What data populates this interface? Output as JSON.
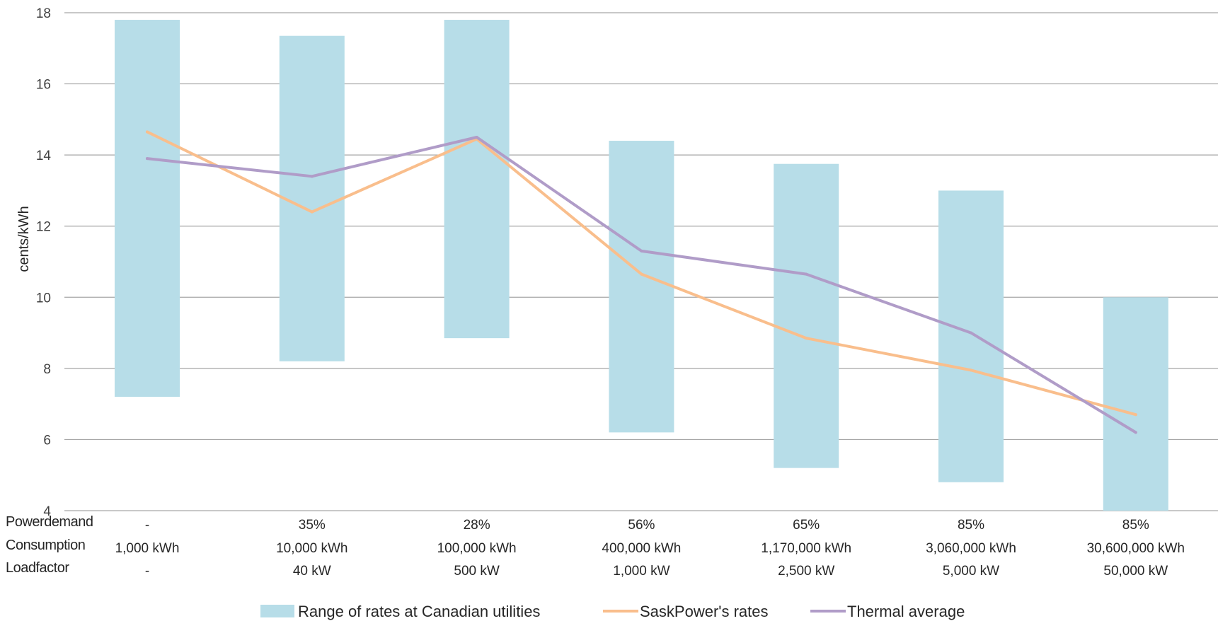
{
  "chart_data": {
    "type": "bar",
    "ylabel": "cents/kWh",
    "ylim": [
      4,
      18
    ],
    "yticks": [
      4,
      6,
      8,
      10,
      12,
      14,
      16,
      18
    ],
    "grid": true,
    "legend_position": "bottom",
    "categories": [
      {
        "power_demand": "-",
        "consumption": "1,000 kWh",
        "load_factor": "-"
      },
      {
        "power_demand": "35%",
        "consumption": "10,000 kWh",
        "load_factor": "40 kW"
      },
      {
        "power_demand": "28%",
        "consumption": "100,000 kWh",
        "load_factor": "500 kW"
      },
      {
        "power_demand": "56%",
        "consumption": "400,000 kWh",
        "load_factor": "1,000 kW"
      },
      {
        "power_demand": "65%",
        "consumption": "1,170,000 kWh",
        "load_factor": "2,500 kW"
      },
      {
        "power_demand": "85%",
        "consumption": "3,060,000 kWh",
        "load_factor": "5,000 kW"
      },
      {
        "power_demand": "85%",
        "consumption": "30,600,000 kWh",
        "load_factor": "50,000 kW"
      }
    ],
    "row_labels": {
      "power_demand": "Powerdemand",
      "consumption": "Consumption",
      "load_factor": "Loadfactor"
    },
    "range": {
      "name": "Range of rates at Canadian utilities",
      "color": "#b7dde8",
      "low": [
        7.2,
        8.2,
        8.85,
        6.2,
        5.2,
        4.8,
        4.0
      ],
      "high": [
        17.8,
        17.35,
        17.8,
        14.4,
        13.75,
        13.0,
        10.0
      ]
    },
    "series": [
      {
        "name": "SaskPower's rates",
        "color": "#f9be8c",
        "values": [
          14.65,
          12.4,
          14.45,
          10.65,
          8.85,
          7.95,
          6.7
        ]
      },
      {
        "name": "Thermal average",
        "color": "#b09cc8",
        "values": [
          13.9,
          13.4,
          14.5,
          11.3,
          10.65,
          9.0,
          6.2
        ]
      }
    ]
  }
}
